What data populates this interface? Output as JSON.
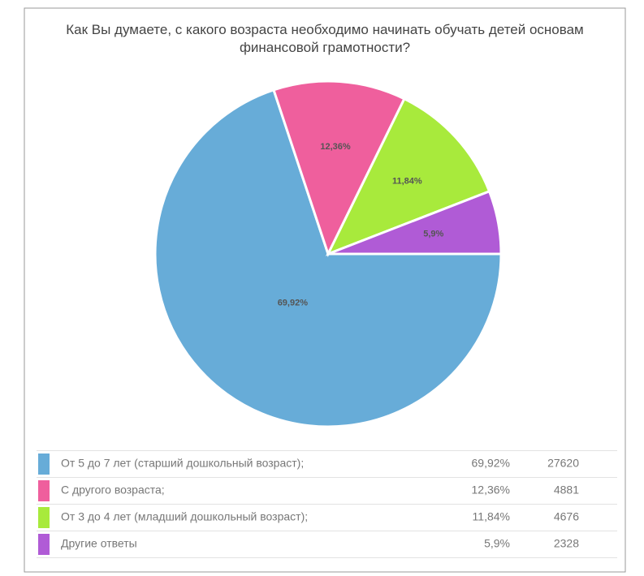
{
  "chart_data": {
    "type": "pie",
    "title": "Как Вы думаете, с какого возраста необходимо начинать обучать детей основам финансовой грамотности?",
    "categories": [
      "От 5 до 7 лет (старший дошкольный возраст);",
      "С другого возраста;",
      "От 3 до 4 лет (младший дошкольный возраст);",
      "Другие ответы"
    ],
    "values": [
      69.92,
      12.36,
      11.84,
      5.9
    ],
    "value_labels": [
      "69,92%",
      "12,36%",
      "11,84%",
      "5,9%"
    ],
    "counts": [
      27620,
      4881,
      4676,
      2328
    ],
    "colors": [
      "#67acd8",
      "#ef5f9d",
      "#a8ea3c",
      "#b05bd6"
    ]
  }
}
